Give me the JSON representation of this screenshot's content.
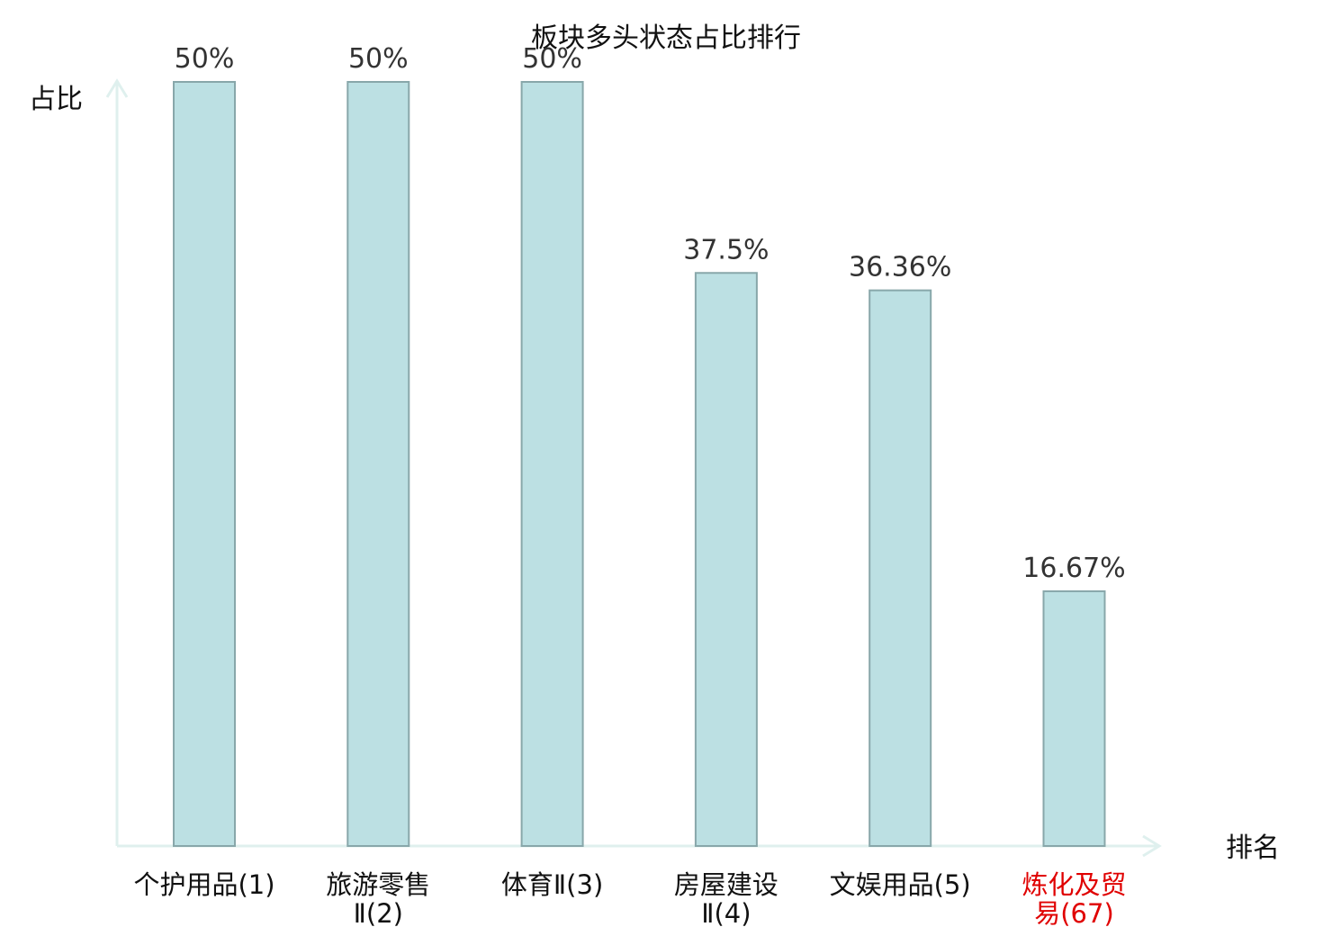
{
  "chart_data": {
    "type": "bar",
    "title": "板块多头状态占比排行",
    "ylabel": "占比",
    "xlabel": "排名",
    "ylim": [
      0,
      50
    ],
    "grid": false,
    "legend": "none",
    "categories": [
      [
        "个护用品(1)"
      ],
      [
        "旅游零售",
        "Ⅱ(2)"
      ],
      [
        "体育Ⅱ(3)"
      ],
      [
        "房屋建设",
        "Ⅱ(4)"
      ],
      [
        "文娱用品(5)"
      ],
      [
        "炼化及贸",
        "易(67)"
      ]
    ],
    "highlight_index": 5,
    "values": [
      50,
      50,
      50,
      37.5,
      36.36,
      16.67
    ],
    "value_labels": [
      "50%",
      "50%",
      "50%",
      "37.5%",
      "36.36%",
      "16.67%"
    ],
    "colors": {
      "bar_fill": "#bce0e3",
      "bar_stroke": "#88a7aa",
      "axis": "#dff0ee",
      "text": "#333333",
      "label": "#111111",
      "highlight": "#e00000"
    }
  }
}
